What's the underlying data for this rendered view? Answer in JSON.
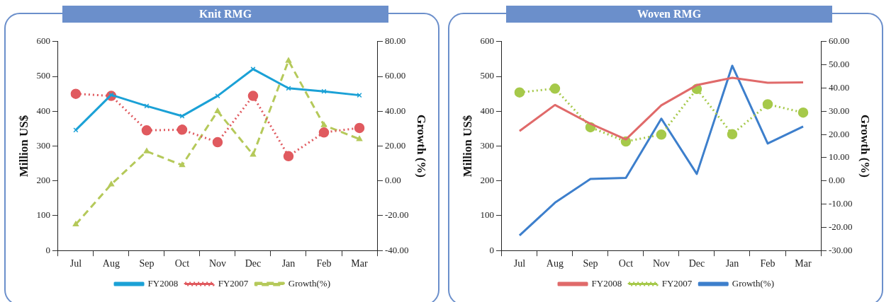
{
  "chart_data": [
    {
      "type": "line",
      "title": "Knit RMG",
      "ylabel": "Million US$",
      "y2label": "Growth (%)",
      "categories": [
        "Jul",
        "Aug",
        "Sep",
        "Oct",
        "Nov",
        "Dec",
        "Jan",
        "Feb",
        "Mar"
      ],
      "ylim": [
        0,
        600
      ],
      "yticks": [
        0,
        100,
        200,
        300,
        400,
        500,
        600
      ],
      "y2lim": [
        -40,
        80
      ],
      "y2ticks": [
        {
          "value": -40,
          "label": "-40.00"
        },
        {
          "value": -20,
          "label": "-20.00"
        },
        {
          "value": 0,
          "label": "0.00"
        },
        {
          "value": 20,
          "label": "20.00"
        },
        {
          "value": 40,
          "label": "40.00"
        },
        {
          "value": 60,
          "label": "60.00"
        },
        {
          "value": 80,
          "label": "80.00"
        }
      ],
      "grid": false,
      "legend": "bottom",
      "series": [
        {
          "name": "FY2008",
          "color": "#1ba1d6",
          "marker": "cross",
          "line_style": "solid",
          "values": [
            346,
            447,
            415,
            386,
            444,
            521,
            466,
            457,
            446
          ]
        },
        {
          "name": "FY2007",
          "color": "#e05a5f",
          "marker": "circle",
          "line_style": "dotted",
          "values": [
            450,
            444,
            345,
            347,
            311,
            444,
            271,
            339,
            352
          ]
        },
        {
          "name": "Growth(%)",
          "color": "#b5c95a",
          "marker": "triangle",
          "line_style": "dashed",
          "axis": "y2",
          "values": [
            -25,
            -2,
            17,
            9,
            40,
            15,
            69,
            32,
            24
          ]
        }
      ]
    },
    {
      "type": "line",
      "title": "Woven RMG",
      "ylabel": "Million US$",
      "y2label": "Growth (%)",
      "categories": [
        "Jul",
        "Aug",
        "Sep",
        "Oct",
        "Nov",
        "Dec",
        "Jan",
        "Feb",
        "Mar"
      ],
      "ylim": [
        0,
        600
      ],
      "yticks": [
        0,
        100,
        200,
        300,
        400,
        500,
        600
      ],
      "y2lim": [
        -30,
        60
      ],
      "y2ticks": [
        {
          "value": -30,
          "label": "-30.00"
        },
        {
          "value": -20,
          "label": "-20.00"
        },
        {
          "value": -10,
          "label": "-10.00"
        },
        {
          "value": 0,
          "label": "0.00"
        },
        {
          "value": 10,
          "label": "10.00"
        },
        {
          "value": 20,
          "label": "20.00"
        },
        {
          "value": 30,
          "label": "30.00"
        },
        {
          "value": 40,
          "label": "40.00"
        },
        {
          "value": 50,
          "label": "50.00"
        },
        {
          "value": 60,
          "label": "60.00"
        }
      ],
      "grid": false,
      "legend": "bottom",
      "series": [
        {
          "name": "FY2008",
          "color": "#e06a6a",
          "marker": "none",
          "line_style": "solid",
          "values": [
            343,
            418,
            364,
            319,
            417,
            475,
            496,
            482,
            483
          ]
        },
        {
          "name": "FY2007",
          "color": "#a6c94a",
          "marker": "circle",
          "line_style": "dotted",
          "values": [
            454,
            465,
            354,
            313,
            333,
            464,
            334,
            420,
            396
          ]
        },
        {
          "name": "Growth(%)",
          "color": "#3d7fcc",
          "marker": "none",
          "line_style": "solid",
          "axis": "y2",
          "values": [
            -23.5,
            -9.4,
            0.8,
            1.3,
            26.8,
            3.0,
            49.6,
            16.1,
            23.4
          ]
        }
      ]
    }
  ]
}
